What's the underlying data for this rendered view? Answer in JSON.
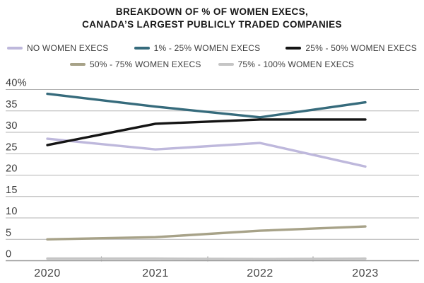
{
  "header": {
    "line1": "BREAKDOWN OF % OF WOMEN EXECS,",
    "line2": "CANADA’S LARGEST PUBLICLY TRADED COMPANIES"
  },
  "chart_data": {
    "type": "line",
    "title": "BREAKDOWN OF % OF WOMEN EXECS, CANADA’S LARGEST PUBLICLY TRADED COMPANIES",
    "x_categories": [
      "2020",
      "2021",
      "2022",
      "2023"
    ],
    "ylim": [
      0,
      40
    ],
    "y_ticks": [
      {
        "label": "40%",
        "value": 40
      },
      {
        "label": "35",
        "value": 35
      },
      {
        "label": "30",
        "value": 30
      },
      {
        "label": "25",
        "value": 25
      },
      {
        "label": "20",
        "value": 20
      },
      {
        "label": "15",
        "value": 15
      },
      {
        "label": "10",
        "value": 10
      },
      {
        "label": "5",
        "value": 5
      },
      {
        "label": "0",
        "value": 0
      }
    ],
    "grid": "horizontal",
    "legend_position": "top",
    "series": [
      {
        "name": "NO WOMEN EXECS",
        "color": "#beb8dc",
        "values": [
          28.5,
          26.0,
          27.5,
          22.0
        ]
      },
      {
        "name": "1% - 25% WOMEN EXECS",
        "color": "#366b7c",
        "values": [
          39.0,
          36.0,
          33.5,
          37.0
        ]
      },
      {
        "name": "25% - 50% WOMEN EXECS",
        "color": "#141414",
        "values": [
          27.0,
          32.0,
          33.0,
          33.0
        ]
      },
      {
        "name": "50% - 75% WOMEN EXECS",
        "color": "#a7a288",
        "values": [
          5.0,
          5.5,
          7.0,
          8.0
        ]
      },
      {
        "name": "75% - 100% WOMEN EXECS",
        "color": "#c5c5c5",
        "values": [
          0.5,
          0.5,
          0.4,
          0.5
        ]
      }
    ],
    "colors": {
      "gridline": "#b3b3b3",
      "zero_line": "#979797",
      "axis_tick": "#a0a0a0",
      "y_label": "#3c3c3c",
      "x_label": "#474747",
      "title": "#191919"
    }
  }
}
